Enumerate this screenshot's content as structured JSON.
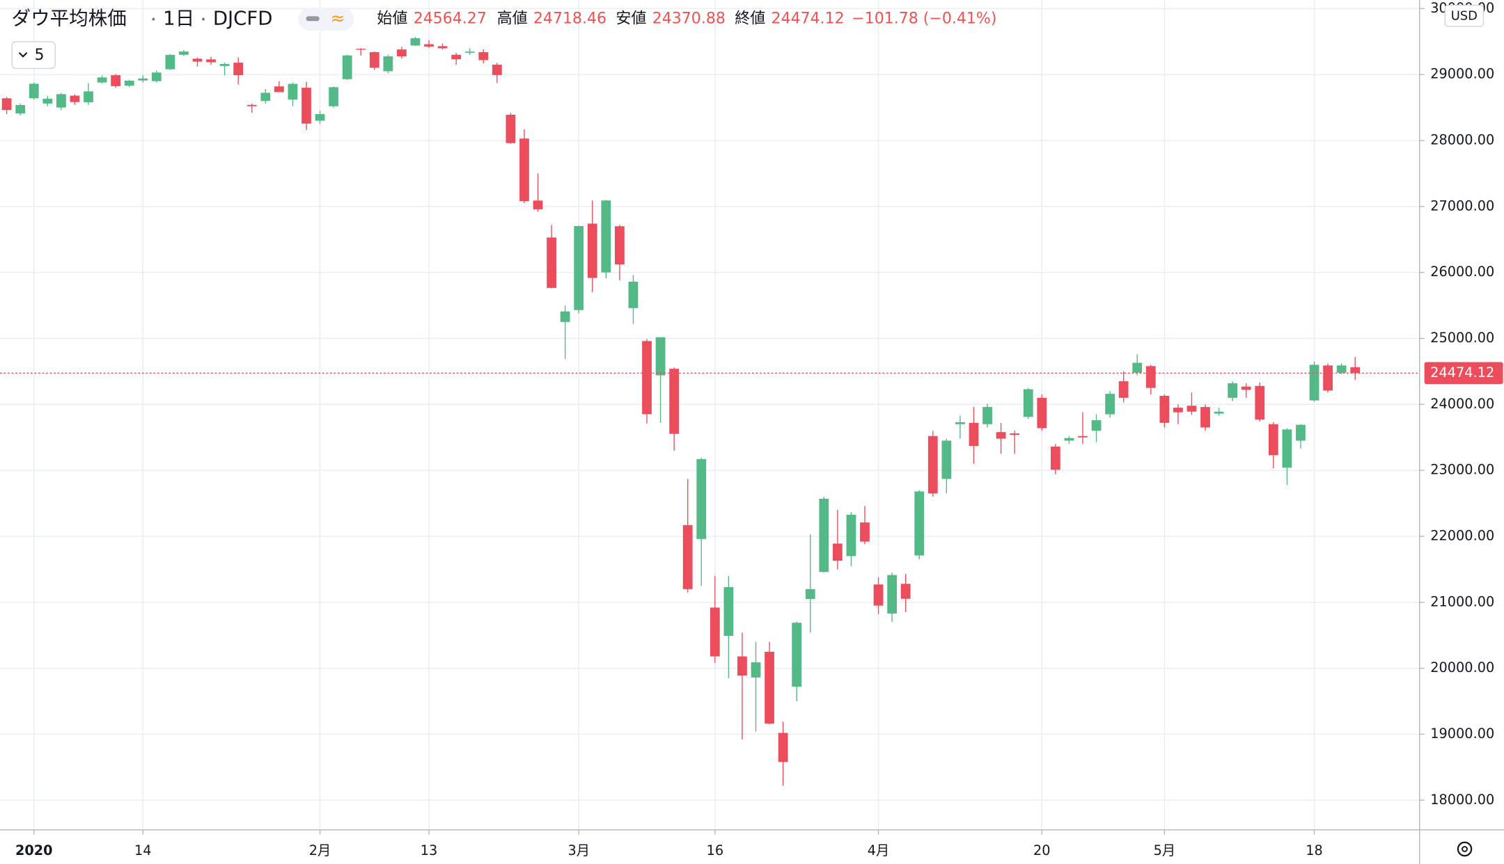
{
  "chart_data": {
    "type": "candlestick",
    "title": "ダウ平均株価",
    "interval": "1日",
    "symbol": "DJCFD",
    "ohlc_labels": [
      "始値",
      "高値",
      "安値",
      "終値"
    ],
    "ohlc_values": [
      "24564.27",
      "24718.46",
      "24370.88",
      "24474.12"
    ],
    "change": "−101.78 (−0.41%)",
    "indicator": "5",
    "currency": "USD",
    "up_color": "#53b987",
    "down_color": "#eb4d5c",
    "last_price": {
      "value": 24474.12,
      "label": "24474.12"
    },
    "ylim": [
      17550,
      30130
    ],
    "yticks": [
      {
        "value": 18000,
        "label": "18000.00"
      },
      {
        "value": 19000,
        "label": "19000.00"
      },
      {
        "value": 20000,
        "label": "20000.00"
      },
      {
        "value": 21000,
        "label": "21000.00"
      },
      {
        "value": 22000,
        "label": "22000.00"
      },
      {
        "value": 23000,
        "label": "23000.00"
      },
      {
        "value": 24000,
        "label": "24000.00"
      },
      {
        "value": 25000,
        "label": "25000.00"
      },
      {
        "value": 26000,
        "label": "26000.00"
      },
      {
        "value": 27000,
        "label": "27000.00"
      },
      {
        "value": 28000,
        "label": "28000.00"
      },
      {
        "value": 29000,
        "label": "29000.00"
      },
      {
        "value": 30000,
        "label": "30000.00"
      }
    ],
    "grid": true,
    "categories": [
      null,
      null,
      "2020",
      null,
      null,
      null,
      null,
      null,
      null,
      null,
      "14",
      null,
      null,
      null,
      null,
      null,
      null,
      null,
      null,
      null,
      null,
      null,
      null,
      "2月",
      null,
      null,
      null,
      null,
      null,
      null,
      null,
      "13",
      null,
      null,
      null,
      null,
      null,
      null,
      null,
      null,
      null,
      null,
      "3月",
      null,
      null,
      null,
      null,
      null,
      null,
      null,
      null,
      null,
      "16",
      null,
      null,
      null,
      null,
      null,
      null,
      null,
      null,
      null,
      null,
      null,
      "4月",
      null,
      null,
      null,
      null,
      null,
      null,
      null,
      null,
      null,
      null,
      null,
      "20",
      null,
      null,
      null,
      null,
      null,
      null,
      null,
      null,
      "5月",
      null,
      null,
      null,
      null,
      null,
      null,
      null,
      null,
      null,
      null,
      "18",
      null,
      null,
      null
    ],
    "open": [
      28640,
      28410,
      28640,
      28560,
      28500,
      28680,
      28580,
      28880,
      28990,
      28830,
      28910,
      28900,
      29080,
      29300,
      29240,
      29230,
      29130,
      29180,
      28540,
      28600,
      28820,
      28620,
      28800,
      28300,
      28520,
      28930,
      29390,
      29340,
      29050,
      29380,
      29440,
      29460,
      29430,
      29300,
      29330,
      29340,
      29150,
      28390,
      28030,
      27090,
      26530,
      25250,
      25430,
      26740,
      26000,
      26700,
      25460,
      24960,
      24440,
      24540,
      22170,
      21960,
      20920,
      20490,
      20180,
      19860,
      20250,
      19020,
      19720,
      21050,
      21460,
      21890,
      21700,
      22210,
      21270,
      20830,
      21280,
      21710,
      23520,
      22870,
      23700,
      23720,
      23700,
      23580,
      23560,
      23810,
      24100,
      23360,
      23450,
      23520,
      23600,
      23850,
      24350,
      24480,
      24580,
      24130,
      23950,
      23980,
      23960,
      23860,
      24100,
      24270,
      24280,
      23700,
      23040,
      23450,
      24060,
      24590,
      24480,
      24564.27
    ],
    "high": [
      28660,
      28560,
      28880,
      28680,
      28720,
      28700,
      28870,
      28990,
      29010,
      28920,
      28990,
      29060,
      29310,
      29370,
      29260,
      29270,
      29180,
      29260,
      28560,
      28780,
      28900,
      28880,
      28890,
      28450,
      28820,
      29300,
      29400,
      29350,
      29300,
      29420,
      29570,
      29520,
      29470,
      29330,
      29400,
      29380,
      29180,
      28420,
      28170,
      27500,
      26720,
      25500,
      26710,
      27090,
      27100,
      26720,
      25960,
      24990,
      25020,
      24560,
      22870,
      23190,
      21400,
      21400,
      20540,
      20400,
      20400,
      19190,
      20710,
      22030,
      22600,
      22400,
      22370,
      22460,
      21380,
      21450,
      21430,
      22700,
      23600,
      23480,
      23830,
      23960,
      24010,
      23720,
      23600,
      24250,
      24150,
      23400,
      23520,
      23880,
      23850,
      24200,
      24500,
      24760,
      24600,
      24150,
      24000,
      24180,
      24000,
      23950,
      24350,
      24320,
      24330,
      23730,
      23640,
      23700,
      24650,
      24620,
      24620,
      24718.46
    ],
    "low": [
      28400,
      28380,
      28620,
      28520,
      28460,
      28540,
      28540,
      28860,
      28800,
      28810,
      28880,
      28880,
      29070,
      29280,
      29120,
      29150,
      28990,
      28850,
      28420,
      28560,
      28740,
      28520,
      28160,
      28250,
      28500,
      28920,
      29290,
      29070,
      29020,
      29240,
      29430,
      29400,
      29380,
      29150,
      29300,
      29170,
      28870,
      27950,
      27050,
      26920,
      25760,
      24690,
      25380,
      25700,
      25910,
      25880,
      25220,
      23710,
      23720,
      23300,
      21150,
      21250,
      20080,
      19850,
      18920,
      19040,
      19150,
      18220,
      19500,
      20540,
      21450,
      21500,
      21550,
      21880,
      20820,
      20700,
      20850,
      21650,
      22600,
      22650,
      23480,
      23100,
      23650,
      23250,
      23250,
      23780,
      23600,
      22940,
      23400,
      23400,
      23430,
      23800,
      24030,
      24440,
      24150,
      23650,
      23700,
      23840,
      23600,
      23830,
      24050,
      24100,
      23740,
      23030,
      22780,
      23330,
      24040,
      24180,
      24460,
      24370.88
    ],
    "close": [
      28462,
      28538,
      28860,
      28634,
      28703,
      28583,
      28745,
      28956,
      28824,
      28907,
      28940,
      29030,
      29298,
      29348,
      29196,
      29186,
      29160,
      28990,
      28520,
      28723,
      28734,
      28859,
      28256,
      28400,
      28808,
      29290,
      29380,
      29103,
      29276,
      29276,
      29551,
      29424,
      29398,
      29232,
      29348,
      29219,
      28992,
      27961,
      27081,
      26957,
      25766,
      25409,
      26703,
      25917,
      27091,
      26121,
      25860,
      23851,
      25018,
      23553,
      21200,
      23170,
      20180,
      21230,
      19890,
      20090,
      19160,
      18580,
      20690,
      21200,
      22570,
      21630,
      22328,
      21920,
      20950,
      21413,
      21053,
      22680,
      22650,
      23450,
      23730,
      23370,
      23960,
      23480,
      23538,
      24230,
      23640,
      23010,
      23490,
      23500,
      23760,
      24160,
      24100,
      24630,
      24250,
      23720,
      23880,
      23890,
      23650,
      23890,
      24320,
      24220,
      23770,
      23230,
      23620,
      23690,
      24600,
      24210,
      24590,
      24474.12
    ]
  }
}
